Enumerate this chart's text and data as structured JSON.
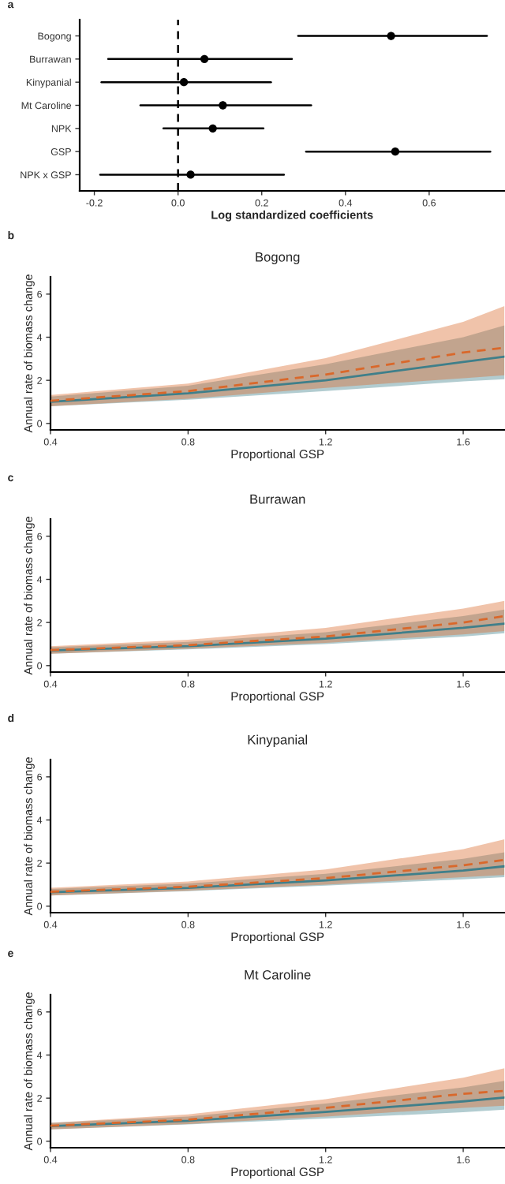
{
  "chart_data": [
    {
      "type": "scatter",
      "orientation": "horizontal",
      "annotations": [
        "a"
      ],
      "xlabel": "Log standardized coefficients",
      "categories": [
        "Bogong",
        "Burrawan",
        "Kinypanial",
        "Mt Caroline",
        "NPK",
        "GSP",
        "NPK x GSP"
      ],
      "values": [
        0.509,
        0.063,
        0.014,
        0.107,
        0.083,
        0.519,
        0.03
      ],
      "errors": [
        [
          0.287,
          0.738
        ],
        [
          -0.167,
          0.272
        ],
        [
          -0.183,
          0.222
        ],
        [
          -0.09,
          0.318
        ],
        [
          -0.035,
          0.204
        ],
        [
          0.306,
          0.746
        ],
        [
          -0.186,
          0.253
        ]
      ],
      "color": "#000000",
      "marker": "circle",
      "xlim": [
        -0.235,
        0.78
      ],
      "xticks": [
        {
          "value": -0.2,
          "label": "-0.2"
        },
        {
          "value": 0,
          "label": "0.0"
        },
        0.2,
        0.4,
        0.6
      ],
      "ref_lines": [
        {
          "axis": "x",
          "value": 0,
          "line_style": "dashed",
          "color": "#000000"
        }
      ],
      "grid": false,
      "legend": false
    },
    {
      "type": "line",
      "annotations": [
        "b"
      ],
      "title": "Bogong",
      "xlabel": "Proportional GSP",
      "ylabel": "Annual rate of biomass change",
      "x": [
        0.4,
        0.8,
        1.2,
        1.6,
        1.72
      ],
      "xlim": [
        0.4,
        1.72
      ],
      "ylim": [
        -0.3,
        6.8
      ],
      "xticks": [
        0.4,
        0.8,
        1.2,
        1.6
      ],
      "yticks": [
        0,
        2,
        4,
        6
      ],
      "grid": false,
      "legend": false,
      "series": [
        {
          "color": "#3f7f8a",
          "line_style": "solid",
          "values": [
            1.0,
            1.4,
            2.0,
            2.85,
            3.1
          ],
          "lower": [
            0.8,
            1.1,
            1.5,
            1.95,
            2.05
          ],
          "upper": [
            1.25,
            1.75,
            2.75,
            4.0,
            4.55
          ]
        },
        {
          "color": "#d9682b",
          "line_style": "dashed",
          "values": [
            1.05,
            1.5,
            2.27,
            3.29,
            3.51
          ],
          "lower": [
            0.8,
            1.15,
            1.65,
            2.1,
            2.23
          ],
          "upper": [
            1.32,
            1.85,
            3.03,
            4.71,
            5.45
          ]
        }
      ]
    },
    {
      "type": "line",
      "annotations": [
        "c"
      ],
      "title": "Burrawan",
      "xlabel": "Proportional GSP",
      "ylabel": "Annual rate of biomass change",
      "x": [
        0.4,
        0.8,
        1.2,
        1.6,
        1.72
      ],
      "xlim": [
        0.4,
        1.72
      ],
      "ylim": [
        -0.3,
        6.8
      ],
      "xticks": [
        0.4,
        0.8,
        1.2,
        1.6
      ],
      "yticks": [
        0,
        2,
        4,
        6
      ],
      "grid": false,
      "legend": false,
      "series": [
        {
          "color": "#3f7f8a",
          "line_style": "solid",
          "values": [
            0.7,
            0.9,
            1.25,
            1.75,
            1.95
          ],
          "lower": [
            0.55,
            0.75,
            1.0,
            1.35,
            1.5
          ],
          "upper": [
            0.85,
            1.1,
            1.55,
            2.3,
            2.6
          ]
        },
        {
          "color": "#d9682b",
          "line_style": "dashed",
          "values": [
            0.72,
            0.95,
            1.35,
            2.0,
            2.3
          ],
          "lower": [
            0.55,
            0.78,
            1.05,
            1.45,
            1.6
          ],
          "upper": [
            0.9,
            1.2,
            1.75,
            2.65,
            3.0
          ]
        }
      ]
    },
    {
      "type": "line",
      "annotations": [
        "d"
      ],
      "title": "Kinypanial",
      "xlabel": "Proportional GSP",
      "ylabel": "Annual rate of biomass change",
      "x": [
        0.4,
        0.8,
        1.2,
        1.6,
        1.72
      ],
      "xlim": [
        0.4,
        1.72
      ],
      "ylim": [
        -0.3,
        6.8
      ],
      "xticks": [
        0.4,
        0.8,
        1.2,
        1.6
      ],
      "yticks": [
        0,
        2,
        4,
        6
      ],
      "grid": false,
      "legend": false,
      "series": [
        {
          "color": "#3f7f8a",
          "line_style": "solid",
          "values": [
            0.65,
            0.85,
            1.2,
            1.65,
            1.85
          ],
          "lower": [
            0.5,
            0.7,
            0.95,
            1.25,
            1.35
          ],
          "upper": [
            0.8,
            1.05,
            1.5,
            2.2,
            2.5
          ]
        },
        {
          "color": "#d9682b",
          "line_style": "dashed",
          "values": [
            0.67,
            0.9,
            1.3,
            1.9,
            2.15
          ],
          "lower": [
            0.5,
            0.72,
            1.0,
            1.35,
            1.45
          ],
          "upper": [
            0.85,
            1.15,
            1.7,
            2.65,
            3.1
          ]
        }
      ]
    },
    {
      "type": "line",
      "annotations": [
        "e"
      ],
      "title": "Mt Caroline",
      "xlabel": "Proportional GSP",
      "ylabel": "Annual rate of biomass change",
      "x": [
        0.4,
        0.8,
        1.2,
        1.6,
        1.72
      ],
      "xlim": [
        0.4,
        1.72
      ],
      "ylim": [
        -0.3,
        6.8
      ],
      "xticks": [
        0.4,
        0.8,
        1.2,
        1.6
      ],
      "yticks": [
        0,
        2,
        4,
        6
      ],
      "grid": false,
      "legend": false,
      "series": [
        {
          "color": "#3f7f8a",
          "line_style": "solid",
          "values": [
            0.7,
            0.95,
            1.36,
            1.85,
            2.03
          ],
          "lower": [
            0.55,
            0.78,
            1.05,
            1.35,
            1.47
          ],
          "upper": [
            0.85,
            1.15,
            1.75,
            2.5,
            2.8
          ]
        },
        {
          "color": "#d9682b",
          "line_style": "dashed",
          "values": [
            0.72,
            1.0,
            1.55,
            2.2,
            2.34
          ],
          "lower": [
            0.55,
            0.8,
            1.15,
            1.55,
            1.65
          ],
          "upper": [
            0.85,
            1.25,
            1.95,
            2.95,
            3.39
          ]
        }
      ]
    }
  ]
}
